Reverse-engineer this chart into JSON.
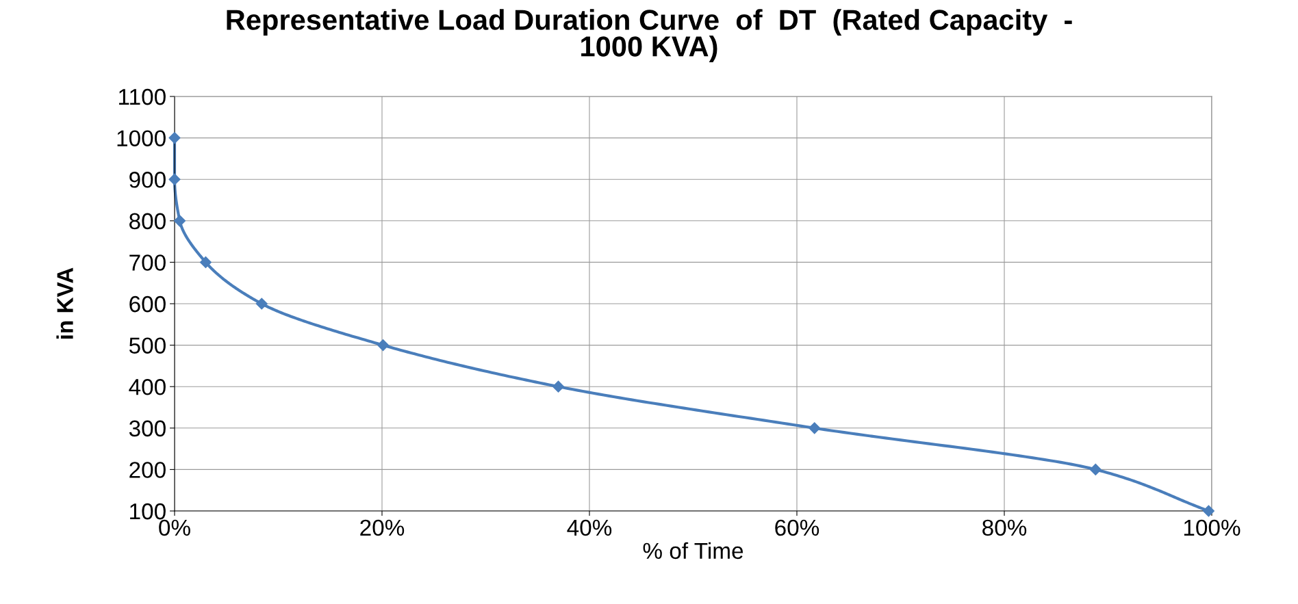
{
  "chart_data": {
    "type": "line",
    "title": "Representative Load Duration Curve  of  DT  (Rated Capacity  -\n1000 KVA)",
    "xlabel": "% of Time",
    "ylabel": "in KVA",
    "x": [
      0,
      0,
      0.5,
      3.0,
      8.4,
      20.1,
      37.0,
      61.7,
      88.8,
      99.7
    ],
    "series": [
      {
        "color": "#4a7ebb",
        "values": [
          1000,
          900,
          800,
          700,
          600,
          500,
          400,
          300,
          200,
          100
        ]
      }
    ],
    "xlim": [
      0,
      100
    ],
    "xticks": [
      {
        "value": 0,
        "label": "0%"
      },
      {
        "value": 20,
        "label": "20%"
      },
      {
        "value": 40,
        "label": "40%"
      },
      {
        "value": 60,
        "label": "60%"
      },
      {
        "value": 80,
        "label": "80%"
      },
      {
        "value": 100,
        "label": "100%"
      }
    ],
    "ylim": [
      100,
      1100
    ],
    "yticks": [
      100,
      200,
      300,
      400,
      500,
      600,
      700,
      800,
      900,
      1000,
      1100
    ],
    "grid": true,
    "marker": "diamond",
    "line_style": "solid"
  }
}
